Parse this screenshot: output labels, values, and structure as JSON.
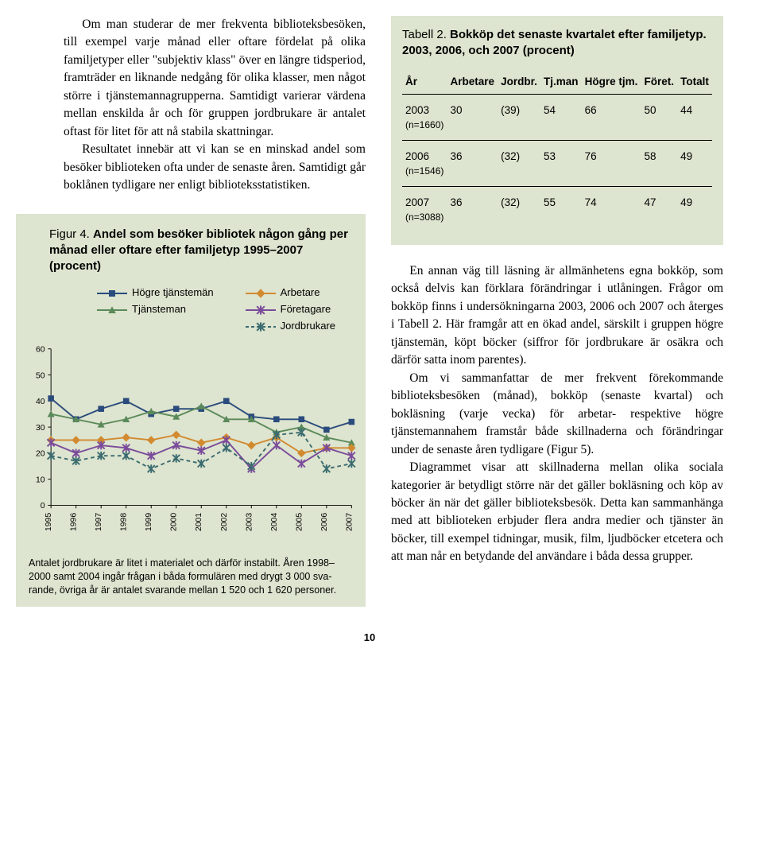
{
  "left": {
    "paragraphs": [
      "Om man studerar de mer frekventa biblio­teksbesöken, till exempel varje månad eller oftare fördelat på olika familjetyper eller \"subjektiv klass\" över en längre tidsperiod, framträder en liknande nedgång för olika klas­ser, men något större i tjänstemannagrupperna. Samtidigt varierar värdena mellan enskilda år och för gruppen jordbrukare är antalet oftast för litet för att nå stabila skattningar.",
      "Resultatet innebär att vi kan se en minskad andel som besöker biblioteken ofta under de senaste åren. Samtidigt går boklånen tydligare ner enligt biblioteksstatistiken."
    ]
  },
  "figure": {
    "label": "Figur 4.",
    "title": "Andel som besöker bibliotek någon gång per månad eller oftare efter familjetyp 1995–2007 (procent)",
    "legend": {
      "col1": [
        {
          "name": "Högre tjänstemän",
          "color": "#2a4b7c",
          "marker": "square"
        },
        {
          "name": "Tjänsteman",
          "color": "#5b8a5a",
          "marker": "triangle"
        }
      ],
      "col2": [
        {
          "name": "Arbetare",
          "color": "#d28a2f",
          "marker": "diamond"
        },
        {
          "name": "Företagare",
          "color": "#7a4b9a",
          "marker": "star"
        },
        {
          "name": "Jordbrukare",
          "color": "#3a6b6f",
          "marker": "x",
          "dashed": true
        }
      ]
    },
    "chart": {
      "type": "line",
      "background_color": "#dde4cf",
      "axis_color": "#000000",
      "years": [
        1995,
        1996,
        1997,
        1998,
        1999,
        2000,
        2001,
        2002,
        2003,
        2004,
        2005,
        2006,
        2007
      ],
      "ylim": [
        0,
        60
      ],
      "ytick_step": 10,
      "label_fontsize": 11,
      "line_width": 2,
      "marker_size": 5,
      "series": [
        {
          "name": "Högre tjänstemän",
          "color": "#2a4b7c",
          "marker": "square",
          "values": [
            41,
            33,
            37,
            40,
            35,
            37,
            37,
            40,
            34,
            33,
            33,
            29,
            32
          ]
        },
        {
          "name": "Tjänsteman",
          "color": "#5b8a5a",
          "marker": "triangle",
          "values": [
            35,
            33,
            31,
            33,
            36,
            34,
            38,
            33,
            33,
            28,
            30,
            26,
            24
          ]
        },
        {
          "name": "Arbetare",
          "color": "#d28a2f",
          "marker": "diamond",
          "values": [
            25,
            25,
            25,
            26,
            25,
            27,
            24,
            26,
            23,
            26,
            20,
            22,
            22
          ]
        },
        {
          "name": "Företagare",
          "color": "#7a4b9a",
          "marker": "star",
          "values": [
            24,
            20,
            23,
            22,
            19,
            23,
            21,
            25,
            14,
            23,
            16,
            22,
            19
          ]
        },
        {
          "name": "Jordbrukare",
          "color": "#3a6b6f",
          "marker": "x",
          "dashed": true,
          "values": [
            19,
            17,
            19,
            19,
            14,
            18,
            16,
            22,
            15,
            27,
            28,
            14,
            16
          ]
        }
      ]
    },
    "note": "Antalet jordbrukare är litet i materialet och därför instabilt. Åren 1998–2000 samt 2004 ingår frågan i båda formulären med drygt 3 000 sva­rande, övriga år är antalet svarande mellan 1 520 och 1 620 personer."
  },
  "table": {
    "label": "Tabell 2.",
    "title": "Bokköp det senaste kvartalet efter familjetyp. 2003, 2006, och 2007 (procent)",
    "columns": [
      "År",
      "Arbetare",
      "Jordbr.",
      "Tj.man",
      "Högre tjm.",
      "Föret.",
      "Totalt"
    ],
    "rows": [
      {
        "year": "2003",
        "sub": "(n=1660)",
        "cells": [
          "30",
          "(39)",
          "54",
          "66",
          "50",
          "44"
        ]
      },
      {
        "year": "2006",
        "sub": "(n=1546)",
        "cells": [
          "36",
          "(32)",
          "53",
          "76",
          "58",
          "49"
        ]
      },
      {
        "year": "2007",
        "sub": "(n=3088)",
        "cells": [
          "36",
          "(32)",
          "55",
          "74",
          "47",
          "49"
        ]
      }
    ]
  },
  "right": {
    "paragraphs": [
      "En annan väg till läsning är allmänhetens egna bokköp, som också delvis kan förklara förändringar i utlåningen. Frågor om bokköp finns i undersökningarna 2003, 2006 och 2007 och återges i Tabell 2. Här framgår att en ökad andel, särskilt i gruppen högre tjänstemän, köpt böcker (siffror för jordbrukare är osäkra och därför satta inom parentes).",
      "Om vi sammanfattar de mer frekvent före­kommande biblioteksbesöken (månad), bokköp (senaste kvartal) och bokläsning (varje vecka) för arbetar- respektive högre tjänstemannahem framstår både skillnaderna och förändringar under de senaste åren tydligare (Figur 5).",
      "Diagrammet visar att skillnaderna mellan olika sociala kategorier är betydligt större när det gäller bokläsning och köp av böcker än när det gäller biblioteksbesök. Detta kan samman­hänga med att biblioteken erbjuder flera andra medier och tjänster än böcker, till exempel tidningar, musik, film, ljudböcker etcetera och att man når en betydande del användare i båda dessa grupper."
    ]
  },
  "page_number": "10"
}
